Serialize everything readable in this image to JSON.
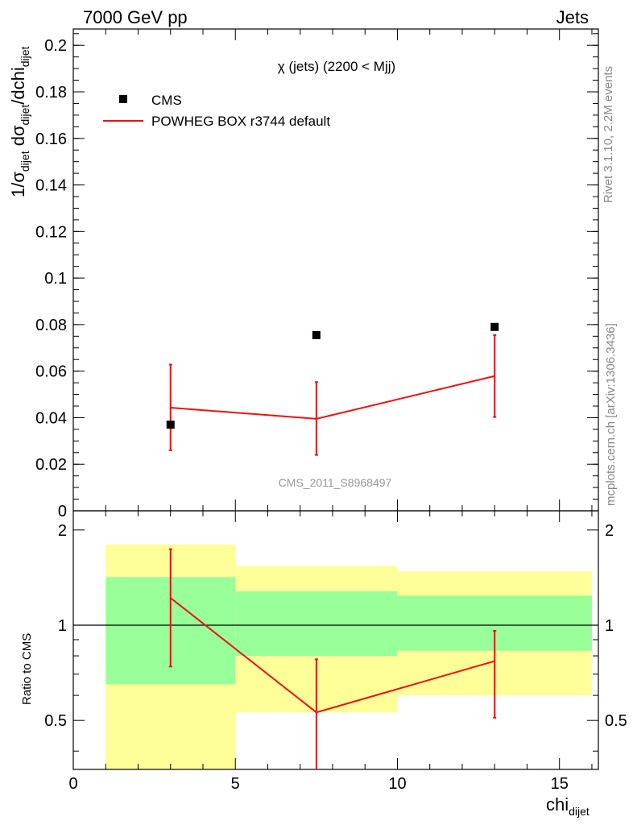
{
  "header": {
    "left": "7000 GeV pp",
    "right": "Jets"
  },
  "side_labels": {
    "rivet": "Rivet 3.1.10,  2.2M events",
    "mcplots": "mcplots.cern.ch [arXiv:1306.3436]"
  },
  "colors": {
    "data": "#000000",
    "mc": "#ee1111",
    "band_inner": "#99ff99",
    "band_outer": "#ffff99"
  },
  "chart_data": [
    {
      "type": "scatter",
      "panel": "main",
      "title": "χ (jets) (2200 < Mjj)",
      "watermark": "CMS_2011_S8968497",
      "ylabel": {
        "pre": "1/σ",
        "sub1": "dijet",
        "mid": " dσ",
        "sub2": "dijet",
        "post": "/dchi",
        "sub3": "dijet"
      },
      "xlim": [
        0,
        16.2
      ],
      "ylim": [
        0,
        0.207
      ],
      "yticks": [
        0,
        0.02,
        0.04,
        0.06,
        0.08,
        0.1,
        0.12,
        0.14,
        0.16,
        0.18,
        0.2
      ],
      "ytick_labels": [
        "0",
        "0.02",
        "0.04",
        "0.06",
        "0.08",
        "0.1",
        "0.12",
        "0.14",
        "0.16",
        "0.18",
        "0.2"
      ],
      "legend": [
        {
          "label": "CMS",
          "kind": "marker"
        },
        {
          "label": "POWHEG BOX r3744 default",
          "kind": "line"
        }
      ],
      "series": [
        {
          "name": "CMS",
          "x": [
            3,
            7.5,
            13
          ],
          "y": [
            0.037,
            0.0755,
            0.079
          ]
        },
        {
          "name": "POWHEG BOX r3744 default",
          "x": [
            3,
            7.5,
            13
          ],
          "y": [
            0.0443,
            0.0395,
            0.0579
          ],
          "yerr_low": [
            0.0183,
            0.0155,
            0.0176
          ],
          "yerr_high": [
            0.0185,
            0.0158,
            0.0176
          ]
        }
      ]
    },
    {
      "type": "line",
      "panel": "ratio",
      "ylabel": "Ratio to CMS",
      "xlabel": {
        "main": "chi",
        "sub": "dijet"
      },
      "xlim": [
        0,
        16.2
      ],
      "ylim": [
        0.35,
        2.3
      ],
      "log_y": true,
      "reference": 1,
      "yticks": [
        0.5,
        1,
        2
      ],
      "ytick_labels": [
        "0.5",
        "1",
        "2"
      ],
      "xticks": [
        0,
        5,
        10,
        15
      ],
      "xtick_labels": [
        "0",
        "5",
        "10",
        "15"
      ],
      "bins": [
        {
          "x_low": 1,
          "x_high": 5,
          "inner_low": 0.65,
          "inner_high": 1.42,
          "outer_low": 0.35,
          "outer_high": 1.8
        },
        {
          "x_low": 5,
          "x_high": 10,
          "inner_low": 0.8,
          "inner_high": 1.28,
          "outer_low": 0.53,
          "outer_high": 1.54
        },
        {
          "x_low": 10,
          "x_high": 16,
          "inner_low": 0.83,
          "inner_high": 1.24,
          "outer_low": 0.6,
          "outer_high": 1.48
        }
      ],
      "series": [
        {
          "name": "POWHEG BOX r3744 default",
          "x": [
            3,
            7.5,
            13
          ],
          "y": [
            1.22,
            0.53,
            0.77
          ],
          "yerr_low": [
            0.48,
            0.19,
            0.26
          ],
          "yerr_high": [
            0.52,
            0.25,
            0.19
          ]
        }
      ]
    }
  ]
}
